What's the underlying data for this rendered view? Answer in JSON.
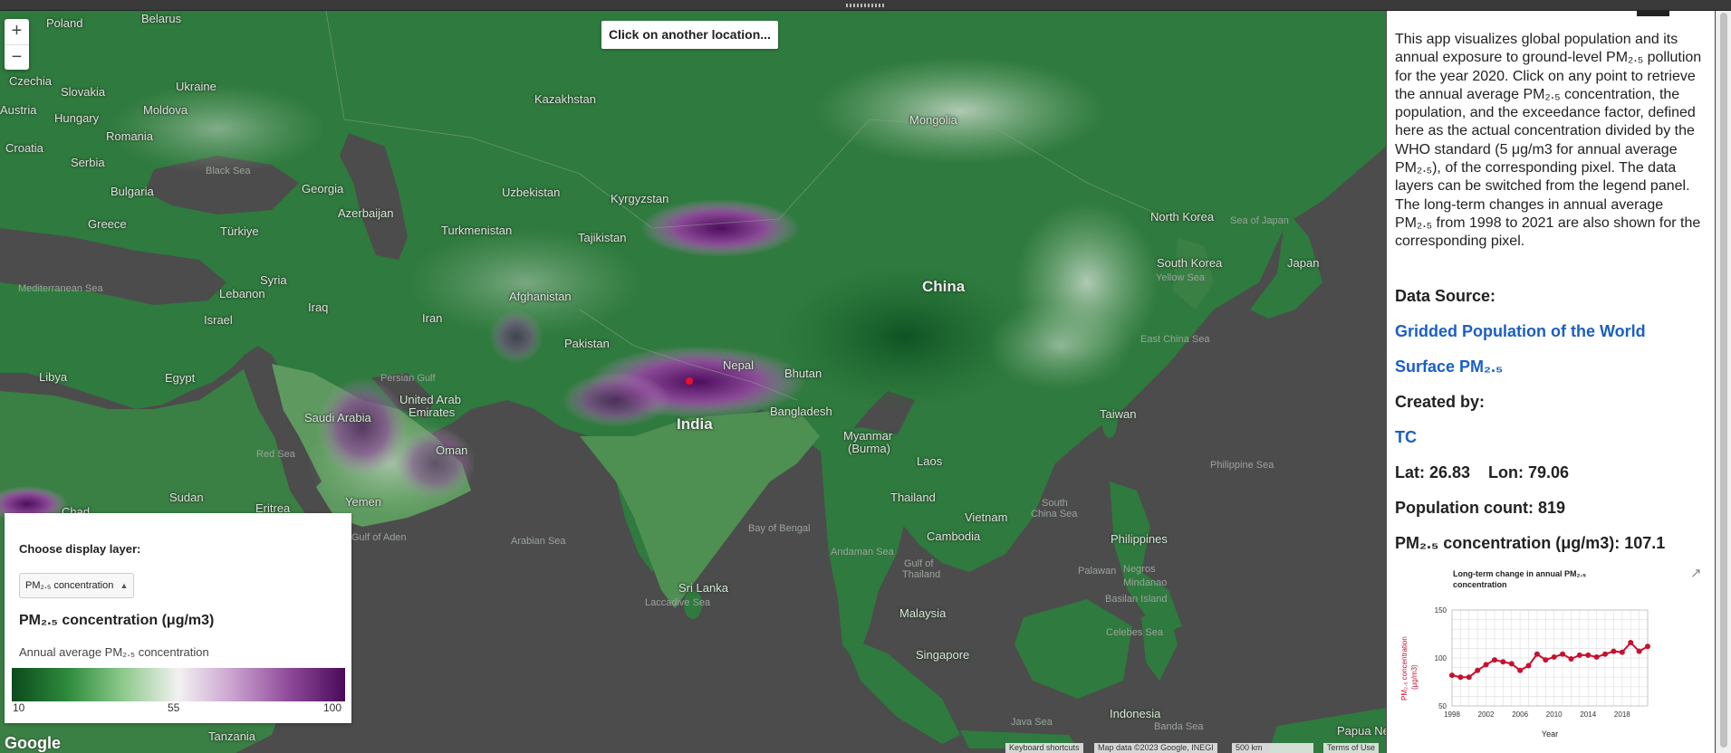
{
  "map": {
    "zoom_in": "+",
    "zoom_out": "−",
    "instruction": "Click on another location...",
    "labels": {
      "countries": [
        {
          "text": "Poland"
        },
        {
          "text": "Belarus"
        },
        {
          "text": "Czechia"
        },
        {
          "text": "Ukraine"
        },
        {
          "text": "Slovakia"
        },
        {
          "text": "Austria"
        },
        {
          "text": "Hungary"
        },
        {
          "text": "Moldova"
        },
        {
          "text": "Romania"
        },
        {
          "text": "Croatia"
        },
        {
          "text": "Serbia"
        },
        {
          "text": "Bulgaria"
        },
        {
          "text": "Greece"
        },
        {
          "text": "Türkiye"
        },
        {
          "text": "Georgia"
        },
        {
          "text": "Azerbaijan"
        },
        {
          "text": "Kazakhstan"
        },
        {
          "text": "Uzbekistan"
        },
        {
          "text": "Turkmenistan"
        },
        {
          "text": "Kyrgyzstan"
        },
        {
          "text": "Tajikistan"
        },
        {
          "text": "Mongolia"
        },
        {
          "text": "North Korea"
        },
        {
          "text": "South Korea"
        },
        {
          "text": "Japan"
        },
        {
          "text": "Syria"
        },
        {
          "text": "Lebanon"
        },
        {
          "text": "Israel"
        },
        {
          "text": "Iraq"
        },
        {
          "text": "Iran"
        },
        {
          "text": "Afghanistan"
        },
        {
          "text": "Pakistan"
        },
        {
          "text": "Nepal"
        },
        {
          "text": "Bhutan"
        },
        {
          "text": "Libya"
        },
        {
          "text": "Egypt"
        },
        {
          "text": "Saudi Arabia"
        },
        {
          "text": "United Arab"
        },
        {
          "text": "Emirates"
        },
        {
          "text": "Oman"
        },
        {
          "text": "Bangladesh"
        },
        {
          "text": "Myanmar"
        },
        {
          "text": "(Burma)"
        },
        {
          "text": "Taiwan"
        },
        {
          "text": "Laos"
        },
        {
          "text": "Sudan"
        },
        {
          "text": "Eritrea"
        },
        {
          "text": "Yemen"
        },
        {
          "text": "Thailand"
        },
        {
          "text": "Vietnam"
        },
        {
          "text": "Cambodia"
        },
        {
          "text": "Philippines"
        },
        {
          "text": "Sri Lanka"
        },
        {
          "text": "Malaysia"
        },
        {
          "text": "Singapore"
        },
        {
          "text": "Indonesia"
        },
        {
          "text": "Tanzania"
        },
        {
          "text": "Papua Ne"
        },
        {
          "text": "Chad"
        }
      ],
      "big": [
        {
          "text": "China"
        },
        {
          "text": "India"
        }
      ],
      "seas": [
        {
          "text": "Black Sea"
        },
        {
          "text": "Sea of Japan"
        },
        {
          "text": "Mediterranean Sea"
        },
        {
          "text": "Yellow Sea"
        },
        {
          "text": "East China Sea"
        },
        {
          "text": "Persian Gulf"
        },
        {
          "text": "Red Sea"
        },
        {
          "text": "Gulf of Aden"
        },
        {
          "text": "Arabian Sea"
        },
        {
          "text": "Bay of Bengal"
        },
        {
          "text": "Andaman Sea"
        },
        {
          "text": "Gulf of"
        },
        {
          "text": "Thailand"
        },
        {
          "text": "South"
        },
        {
          "text": "China Sea"
        },
        {
          "text": "Philippine Sea"
        },
        {
          "text": "Palawan"
        },
        {
          "text": "Celebes Sea"
        },
        {
          "text": "Laccadive Sea"
        },
        {
          "text": "Java Sea"
        },
        {
          "text": "Banda Sea"
        },
        {
          "text": "Basilan Island"
        },
        {
          "text": "Negros"
        },
        {
          "text": "Mindanao"
        }
      ]
    },
    "google_logo": "Google",
    "attribution": {
      "shortcuts": "Keyboard shortcuts",
      "map_data": "Map data ©2023 Google, INEGI",
      "scale": "500 km",
      "terms": "Terms of Use"
    }
  },
  "legend": {
    "choose_label": "Choose display layer:",
    "selected_layer": "PM₂.₅ concentration",
    "title": "PM₂.₅ concentration (μg/m3)",
    "description": "Annual average PM₂.₅ concentration",
    "min": "10",
    "mid": "55",
    "max": "100"
  },
  "panel": {
    "description": "This app visualizes global population and its annual exposure to ground-level PM₂.₅ pollution for the year 2020. Click on any point to retrieve the annual average PM₂.₅ concentration, the population, and the exceedance factor, defined here as the actual concentration divided by the WHO standard (5 μg/m3 for annual average PM₂.₅), of the corresponding pixel. The data layers can be switched from the legend panel. The long-term changes in annual average PM₂.₅ from 1998 to 2021 are also shown for the corresponding pixel.",
    "data_source_label": "Data Source:",
    "link_population": "Gridded Population of the World",
    "link_pm": "Surface PM₂.₅",
    "created_by_label": "Created by:",
    "author_link": "TC",
    "latlon": "Lat: 26.83    Lon: 79.06",
    "population": "Population count: 819",
    "pm_value": "PM₂.₅ concentration (μg/m3): 107.1"
  },
  "chart_data": {
    "type": "line",
    "title_line1": "Long-term change in annual PM₂.₅",
    "title_line2": "concentration",
    "xlabel": "Year",
    "ylabel_line1": "PM₂.₅ concentration",
    "ylabel_line2": "(μg/m3)",
    "x_ticks": [
      "1998",
      "2002",
      "2006",
      "2010",
      "2014",
      "2018"
    ],
    "y_ticks": [
      "50",
      "100",
      "150"
    ],
    "xlim": [
      1998,
      2021
    ],
    "ylim": [
      50,
      150
    ],
    "grid": true,
    "series": [
      {
        "color": "#c8102e",
        "x": [
          1998,
          1999,
          2000,
          2001,
          2002,
          2003,
          2004,
          2005,
          2006,
          2007,
          2008,
          2009,
          2010,
          2011,
          2012,
          2013,
          2014,
          2015,
          2016,
          2017,
          2018,
          2019,
          2020,
          2021
        ],
        "y": [
          82,
          80,
          80,
          87,
          93,
          98,
          96,
          94,
          87,
          92,
          104,
          98,
          101,
          104,
          99,
          103,
          103,
          101,
          104,
          107,
          106,
          116,
          107,
          112
        ]
      }
    ]
  }
}
